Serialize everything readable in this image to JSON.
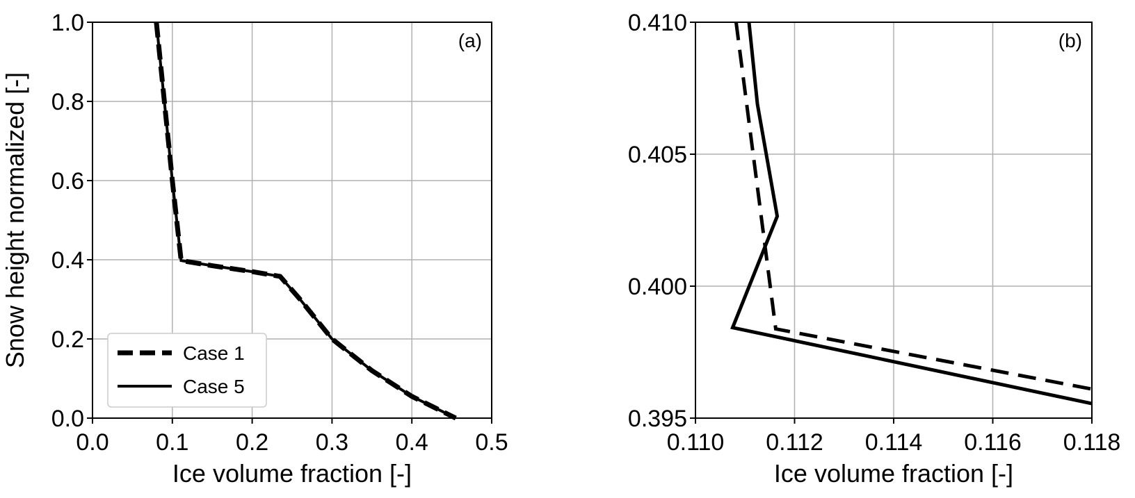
{
  "chart_data": [
    {
      "type": "line",
      "panel_label": "(a)",
      "xlabel": "Ice volume fraction [-]",
      "ylabel": "Snow height normalized [-]",
      "xlim": [
        0.0,
        0.5
      ],
      "ylim": [
        0.0,
        1.0
      ],
      "xticks": [
        "0.0",
        "0.1",
        "0.2",
        "0.3",
        "0.4",
        "0.5"
      ],
      "yticks": [
        "0.0",
        "0.2",
        "0.4",
        "0.6",
        "0.8",
        "1.0"
      ],
      "grid": true,
      "legend": {
        "position": "lower-left",
        "entries": [
          "Case 1",
          "Case 5"
        ]
      },
      "series": [
        {
          "name": "Case 1",
          "style": "dashed",
          "x": [
            0.08,
            0.09,
            0.1,
            0.111,
            0.15,
            0.2,
            0.235,
            0.26,
            0.3,
            0.35,
            0.4,
            0.455
          ],
          "y": [
            1.0,
            0.8,
            0.6,
            0.398,
            0.385,
            0.37,
            0.358,
            0.3,
            0.2,
            0.12,
            0.055,
            0.0
          ]
        },
        {
          "name": "Case 5",
          "style": "solid",
          "x": [
            0.08,
            0.09,
            0.1,
            0.111,
            0.15,
            0.2,
            0.235,
            0.26,
            0.3,
            0.35,
            0.4,
            0.455
          ],
          "y": [
            1.0,
            0.8,
            0.6,
            0.398,
            0.385,
            0.37,
            0.358,
            0.3,
            0.2,
            0.12,
            0.055,
            0.0
          ]
        }
      ]
    },
    {
      "type": "line",
      "panel_label": "(b)",
      "xlabel": "Ice volume fraction [-]",
      "ylabel": "",
      "xlim": [
        0.11,
        0.118
      ],
      "ylim": [
        0.395,
        0.41
      ],
      "xticks": [
        "0.110",
        "0.112",
        "0.114",
        "0.116",
        "0.118"
      ],
      "yticks": [
        "0.395",
        "0.400",
        "0.405",
        "0.410"
      ],
      "grid": true,
      "series": [
        {
          "name": "Case 1",
          "style": "dashed",
          "x": [
            0.11082,
            0.11162,
            0.118
          ],
          "y": [
            0.41,
            0.39838,
            0.3961
          ]
        },
        {
          "name": "Case 5",
          "style": "solid",
          "x": [
            0.11108,
            0.11125,
            0.11165,
            0.11075,
            0.118
          ],
          "y": [
            0.41,
            0.4069,
            0.40265,
            0.39843,
            0.39555
          ]
        }
      ]
    }
  ]
}
